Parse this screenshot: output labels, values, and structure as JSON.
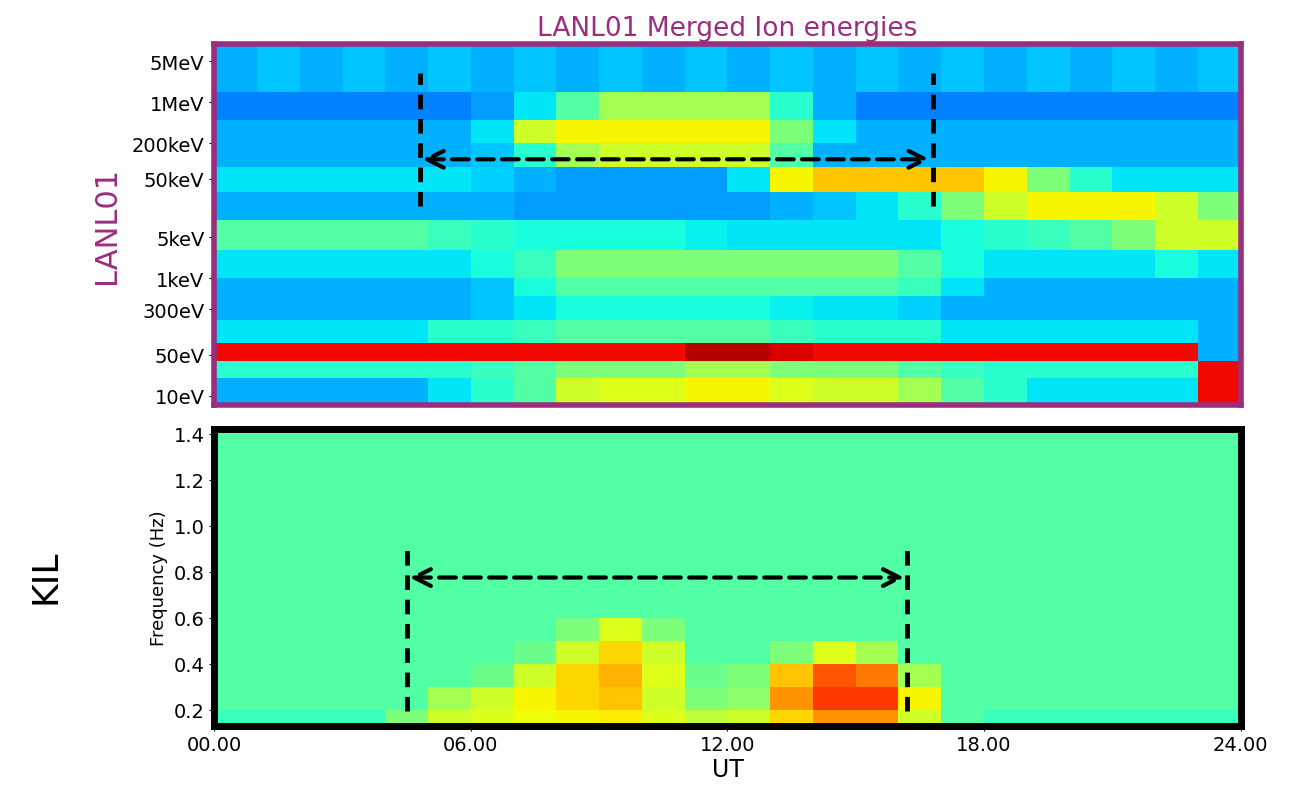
{
  "chart_data": [
    {
      "type": "heatmap",
      "title": "LANL01 Merged Ion energies",
      "y_label": "LANL01",
      "log": "y",
      "tick_labels": "y",
      "xlim": [
        0,
        24
      ],
      "ylim": [
        7,
        10000000
      ],
      "yticks": [
        {
          "value": 10,
          "label": "10eV"
        },
        {
          "value": 50,
          "label": "50eV"
        },
        {
          "value": 300,
          "label": "300eV"
        },
        {
          "value": 1000,
          "label": "1keV"
        },
        {
          "value": 5000,
          "label": "5keV"
        },
        {
          "value": 50000,
          "label": "50keV"
        },
        {
          "value": 200000,
          "label": "200keV"
        },
        {
          "value": 1000000,
          "label": "1MeV"
        },
        {
          "value": 5000000,
          "label": "5MeV"
        }
      ],
      "x": [
        0,
        1,
        2,
        3,
        4,
        5,
        6,
        7,
        8,
        9,
        10,
        11,
        12,
        13,
        14,
        15,
        16,
        17,
        18,
        19,
        20,
        21,
        22,
        23,
        24
      ],
      "y": [
        7,
        20,
        40,
        80,
        200,
        500,
        1000,
        3000,
        10000,
        30000,
        80000,
        200000,
        500000,
        1500000,
        10000000
      ],
      "zlim": [
        0,
        1
      ],
      "cells": [
        [
          0.3,
          0.3,
          0.3,
          0.3,
          0.3,
          0.35,
          0.4,
          0.45,
          0.6,
          0.62,
          0.62,
          0.65,
          0.65,
          0.62,
          0.6,
          0.6,
          0.55,
          0.45,
          0.4,
          0.35,
          0.35,
          0.35,
          0.35,
          0.9
        ],
        [
          0.4,
          0.4,
          0.4,
          0.4,
          0.4,
          0.4,
          0.42,
          0.45,
          0.5,
          0.5,
          0.5,
          0.55,
          0.55,
          0.5,
          0.5,
          0.5,
          0.45,
          0.42,
          0.4,
          0.4,
          0.4,
          0.4,
          0.4,
          0.9
        ],
        [
          0.9,
          0.9,
          0.9,
          0.9,
          0.9,
          0.9,
          0.9,
          0.9,
          0.9,
          0.9,
          0.9,
          0.95,
          0.95,
          0.92,
          0.9,
          0.9,
          0.9,
          0.9,
          0.9,
          0.9,
          0.9,
          0.9,
          0.9,
          0.3
        ],
        [
          0.35,
          0.35,
          0.35,
          0.35,
          0.35,
          0.4,
          0.4,
          0.42,
          0.45,
          0.45,
          0.45,
          0.45,
          0.45,
          0.42,
          0.4,
          0.4,
          0.4,
          0.35,
          0.35,
          0.35,
          0.35,
          0.35,
          0.35,
          0.3
        ],
        [
          0.3,
          0.3,
          0.3,
          0.3,
          0.3,
          0.3,
          0.32,
          0.35,
          0.38,
          0.38,
          0.38,
          0.38,
          0.38,
          0.36,
          0.35,
          0.35,
          0.33,
          0.3,
          0.3,
          0.3,
          0.3,
          0.3,
          0.3,
          0.3
        ],
        [
          0.3,
          0.3,
          0.3,
          0.3,
          0.3,
          0.3,
          0.32,
          0.38,
          0.45,
          0.45,
          0.45,
          0.45,
          0.45,
          0.45,
          0.45,
          0.45,
          0.42,
          0.35,
          0.3,
          0.3,
          0.3,
          0.3,
          0.3,
          0.3
        ],
        [
          0.35,
          0.35,
          0.35,
          0.35,
          0.35,
          0.35,
          0.38,
          0.42,
          0.5,
          0.5,
          0.5,
          0.5,
          0.5,
          0.5,
          0.5,
          0.5,
          0.45,
          0.38,
          0.35,
          0.35,
          0.35,
          0.35,
          0.38,
          0.35
        ],
        [
          0.45,
          0.45,
          0.45,
          0.45,
          0.45,
          0.42,
          0.4,
          0.38,
          0.38,
          0.38,
          0.38,
          0.36,
          0.35,
          0.35,
          0.35,
          0.35,
          0.35,
          0.38,
          0.4,
          0.42,
          0.45,
          0.5,
          0.6,
          0.6
        ],
        [
          0.3,
          0.3,
          0.3,
          0.3,
          0.3,
          0.3,
          0.3,
          0.28,
          0.28,
          0.28,
          0.28,
          0.28,
          0.28,
          0.3,
          0.32,
          0.35,
          0.4,
          0.5,
          0.6,
          0.65,
          0.65,
          0.65,
          0.6,
          0.5
        ],
        [
          0.35,
          0.35,
          0.35,
          0.35,
          0.35,
          0.35,
          0.33,
          0.3,
          0.28,
          0.28,
          0.28,
          0.28,
          0.35,
          0.65,
          0.7,
          0.7,
          0.7,
          0.7,
          0.65,
          0.5,
          0.4,
          0.35,
          0.35,
          0.35
        ],
        [
          0.3,
          0.3,
          0.3,
          0.3,
          0.3,
          0.3,
          0.32,
          0.4,
          0.55,
          0.6,
          0.6,
          0.6,
          0.6,
          0.45,
          0.3,
          0.3,
          0.3,
          0.3,
          0.3,
          0.3,
          0.3,
          0.3,
          0.3,
          0.3
        ],
        [
          0.3,
          0.3,
          0.3,
          0.3,
          0.3,
          0.3,
          0.35,
          0.6,
          0.65,
          0.65,
          0.65,
          0.65,
          0.65,
          0.5,
          0.35,
          0.3,
          0.3,
          0.3,
          0.3,
          0.3,
          0.3,
          0.3,
          0.3,
          0.3
        ],
        [
          0.25,
          0.25,
          0.25,
          0.25,
          0.25,
          0.25,
          0.28,
          0.35,
          0.45,
          0.55,
          0.55,
          0.55,
          0.55,
          0.4,
          0.3,
          0.25,
          0.25,
          0.25,
          0.25,
          0.25,
          0.25,
          0.25,
          0.25,
          0.25
        ],
        [
          0.3,
          0.32,
          0.3,
          0.32,
          0.3,
          0.32,
          0.3,
          0.32,
          0.3,
          0.32,
          0.3,
          0.32,
          0.3,
          0.32,
          0.3,
          0.32,
          0.3,
          0.32,
          0.3,
          0.32,
          0.3,
          0.32,
          0.3,
          0.32
        ]
      ],
      "interval": [
        4.8,
        16.8
      ]
    },
    {
      "type": "heatmap",
      "y_label": "Frequency (Hz)",
      "station": "KIL",
      "x_label": "UT",
      "xlim": [
        0,
        24
      ],
      "ylim": [
        0.13,
        1.42
      ],
      "xticks": [
        {
          "value": 0,
          "label": "00.00"
        },
        {
          "value": 6,
          "label": "06.00"
        },
        {
          "value": 12,
          "label": "12.00"
        },
        {
          "value": 18,
          "label": "18.00"
        },
        {
          "value": 24,
          "label": "24.00"
        }
      ],
      "yticks": [
        0.2,
        0.4,
        0.6,
        0.8,
        1.0,
        1.2,
        1.4
      ],
      "x": [
        0,
        1,
        2,
        3,
        4,
        5,
        6,
        7,
        8,
        9,
        10,
        11,
        12,
        13,
        14,
        15,
        16,
        17,
        18,
        19,
        20,
        21,
        22,
        23,
        24
      ],
      "y": [
        0.13,
        0.2,
        0.3,
        0.4,
        0.5,
        0.6,
        0.8,
        1.0,
        1.2,
        1.42
      ],
      "zlim": [
        0,
        1
      ],
      "cells": [
        [
          0.42,
          0.42,
          0.42,
          0.42,
          0.5,
          0.6,
          0.62,
          0.64,
          0.65,
          0.66,
          0.62,
          0.58,
          0.6,
          0.68,
          0.75,
          0.75,
          0.6,
          0.45,
          0.42,
          0.42,
          0.42,
          0.42,
          0.42,
          0.42
        ],
        [
          0.45,
          0.45,
          0.45,
          0.45,
          0.45,
          0.55,
          0.6,
          0.65,
          0.68,
          0.7,
          0.6,
          0.5,
          0.52,
          0.75,
          0.85,
          0.85,
          0.65,
          0.45,
          0.45,
          0.45,
          0.45,
          0.45,
          0.45,
          0.45
        ],
        [
          0.45,
          0.45,
          0.45,
          0.45,
          0.45,
          0.45,
          0.48,
          0.6,
          0.68,
          0.72,
          0.62,
          0.48,
          0.5,
          0.7,
          0.82,
          0.78,
          0.55,
          0.45,
          0.45,
          0.45,
          0.45,
          0.45,
          0.45,
          0.45
        ],
        [
          0.45,
          0.45,
          0.45,
          0.45,
          0.45,
          0.45,
          0.45,
          0.48,
          0.6,
          0.68,
          0.6,
          0.45,
          0.45,
          0.5,
          0.62,
          0.55,
          0.45,
          0.45,
          0.45,
          0.45,
          0.45,
          0.45,
          0.45,
          0.45
        ],
        [
          0.45,
          0.45,
          0.45,
          0.45,
          0.45,
          0.45,
          0.45,
          0.45,
          0.5,
          0.62,
          0.5,
          0.45,
          0.45,
          0.45,
          0.45,
          0.45,
          0.45,
          0.45,
          0.45,
          0.45,
          0.45,
          0.45,
          0.45,
          0.45
        ],
        [
          0.45,
          0.45,
          0.45,
          0.45,
          0.45,
          0.45,
          0.45,
          0.45,
          0.45,
          0.45,
          0.45,
          0.45,
          0.45,
          0.45,
          0.45,
          0.45,
          0.45,
          0.45,
          0.45,
          0.45,
          0.45,
          0.45,
          0.45,
          0.45
        ],
        [
          0.45,
          0.45,
          0.45,
          0.45,
          0.45,
          0.45,
          0.45,
          0.45,
          0.45,
          0.45,
          0.45,
          0.45,
          0.45,
          0.45,
          0.45,
          0.45,
          0.45,
          0.45,
          0.45,
          0.45,
          0.45,
          0.45,
          0.45,
          0.45
        ],
        [
          0.45,
          0.45,
          0.45,
          0.45,
          0.45,
          0.45,
          0.45,
          0.45,
          0.45,
          0.45,
          0.45,
          0.45,
          0.45,
          0.45,
          0.45,
          0.45,
          0.45,
          0.45,
          0.45,
          0.45,
          0.45,
          0.45,
          0.45,
          0.45
        ],
        [
          0.45,
          0.45,
          0.45,
          0.45,
          0.45,
          0.45,
          0.45,
          0.45,
          0.45,
          0.45,
          0.45,
          0.45,
          0.45,
          0.45,
          0.45,
          0.45,
          0.45,
          0.45,
          0.45,
          0.45,
          0.45,
          0.45,
          0.45,
          0.45
        ]
      ],
      "interval": [
        4.5,
        16.2
      ]
    }
  ]
}
